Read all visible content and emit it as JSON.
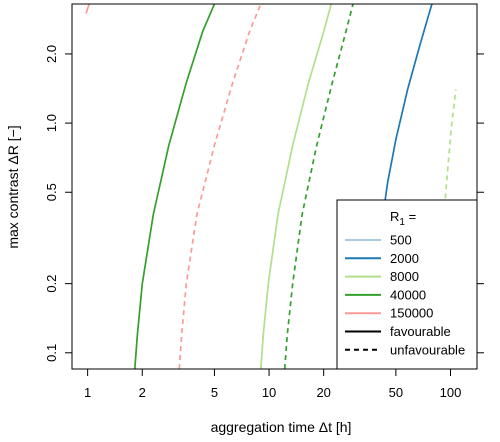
{
  "chart_data": {
    "type": "line",
    "xlabel": "aggregation time Δt [h]",
    "ylabel": "max contrast  ΔR [−]",
    "xscale": "log",
    "yscale": "log",
    "xlim": [
      0.82,
      140
    ],
    "ylim": [
      0.085,
      3.3
    ],
    "xticks": [
      1,
      2,
      5,
      10,
      20,
      50,
      100
    ],
    "yticks": [
      0.1,
      0.2,
      0.5,
      1.0,
      2.0
    ],
    "ytick_labels": [
      "0.1",
      "0.2",
      "0.5",
      "1.0",
      "2.0"
    ],
    "legend": {
      "placement": "bottom-right",
      "title": "R",
      "title_subscript": "1",
      "title_suffix": " =",
      "entries": [
        {
          "label": "500",
          "color": "#a6cee3",
          "style": "solid"
        },
        {
          "label": "2000",
          "color": "#1f78b4",
          "style": "solid"
        },
        {
          "label": "8000",
          "color": "#b2df8a",
          "style": "solid"
        },
        {
          "label": "40000",
          "color": "#33a02c",
          "style": "solid"
        },
        {
          "label": "150000",
          "color": "#fb9a99",
          "style": "solid"
        },
        {
          "label": "favourable",
          "color": "#000000",
          "style": "solid"
        },
        {
          "label": "unfavourable",
          "color": "#000000",
          "style": "dashed"
        }
      ]
    },
    "series": [
      {
        "R1": "40000",
        "scenario": "favourable",
        "color": "#33a02c",
        "style": "solid",
        "x": [
          1.82,
          1.88,
          2.0,
          2.3,
          2.8,
          3.5,
          4.3,
          5.0
        ],
        "y": [
          0.085,
          0.12,
          0.2,
          0.4,
          0.8,
          1.5,
          2.5,
          3.3
        ]
      },
      {
        "R1": "150000",
        "scenario": "unfavourable",
        "color": "#fb9a99",
        "style": "dashed",
        "x": [
          3.2,
          3.3,
          3.5,
          4.0,
          5.0,
          6.3,
          7.8,
          9.0
        ],
        "y": [
          0.085,
          0.12,
          0.2,
          0.4,
          0.8,
          1.5,
          2.5,
          3.3
        ]
      },
      {
        "R1": "150000",
        "scenario": "favourable",
        "color": "#fb9a99",
        "style": "solid",
        "x": [
          0.98,
          1.0,
          1.02
        ],
        "y": [
          3.0,
          3.15,
          3.3
        ]
      },
      {
        "R1": "8000",
        "scenario": "favourable",
        "color": "#b2df8a",
        "style": "solid",
        "x": [
          9.0,
          9.3,
          9.9,
          11.2,
          13.5,
          16.5,
          20.0,
          22.0
        ],
        "y": [
          0.085,
          0.12,
          0.2,
          0.4,
          0.8,
          1.5,
          2.5,
          3.3
        ]
      },
      {
        "R1": "40000",
        "scenario": "unfavourable",
        "color": "#33a02c",
        "style": "dashed",
        "x": [
          12.2,
          12.6,
          13.5,
          15.2,
          18.3,
          22.3,
          26.5,
          29.0
        ],
        "y": [
          0.085,
          0.12,
          0.2,
          0.4,
          0.8,
          1.5,
          2.5,
          3.3
        ]
      },
      {
        "R1": "2000",
        "scenario": "favourable",
        "color": "#1f78b4",
        "style": "solid",
        "x": [
          42.0,
          42.5,
          45.0,
          50.0,
          58.0,
          68.0,
          79.0
        ],
        "y": [
          0.3,
          0.4,
          0.55,
          0.85,
          1.4,
          2.2,
          3.3
        ]
      },
      {
        "R1": "8000",
        "scenario": "unfavourable",
        "color": "#b2df8a",
        "style": "dashed",
        "x": [
          90.0,
          92.0,
          96.0,
          101.0,
          107.0
        ],
        "y": [
          0.3,
          0.4,
          0.6,
          0.95,
          1.4
        ]
      }
    ]
  }
}
